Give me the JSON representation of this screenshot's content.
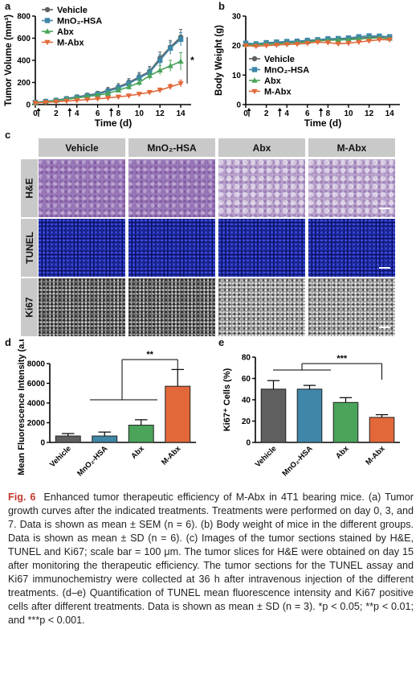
{
  "caption": {
    "fig_label": "Fig. 6",
    "text": "Enhanced tumor therapeutic efficiency of M-Abx in 4T1 bearing mice. (a) Tumor growth curves after the indicated treatments. Treatments were performed on day 0, 3, and 7. Data is shown as mean ± SEM (n = 6). (b) Body weight of mice in the different groups. Data is shown as mean ± SD (n = 6). (c) Images of the tumor sections stained by H&E, TUNEL and Ki67; scale bar = 100 μm. The tumor slices for H&E were obtained on day 15 after monitoring the therapeutic efficiency. The tumor sections for the TUNEL assay and Ki67 immunochemistry were collected at 36 h after intravenous injection of the different treatments. (d–e) Quantification of TUNEL mean fluorescence intensity and Ki67 positive cells after different treatments. Data is shown as mean ± SD (n = 3). *p < 0.05; **p < 0.01; and ***p < 0.001."
  },
  "panel_letters": {
    "a": "a",
    "b": "b",
    "c": "c",
    "d": "d",
    "e": "e"
  },
  "panel_c": {
    "columns": [
      "Vehicle",
      "MnO₂-HSA",
      "Abx",
      "M-Abx"
    ],
    "rows": [
      "H&E",
      "TUNEL",
      "Ki67"
    ]
  },
  "colors": {
    "vehicle": "#5f5f5f",
    "mno2": "#3f87a8",
    "abx": "#4aa45a",
    "mabx": "#e2683a"
  },
  "chart_data": [
    {
      "id": "a",
      "type": "line",
      "xlabel": "Time (d)",
      "ylabel": "Tumor Volume (mm³)",
      "xlim": [
        0,
        15
      ],
      "ylim": [
        0,
        800
      ],
      "xticks": [
        0,
        2,
        4,
        6,
        8,
        10,
        12,
        14
      ],
      "yticks": [
        0,
        200,
        400,
        600,
        800
      ],
      "treatment_days": [
        0,
        3,
        7
      ],
      "x": [
        0,
        1,
        2,
        3,
        4,
        5,
        6,
        7,
        8,
        9,
        10,
        11,
        12,
        13,
        14
      ],
      "series": [
        {
          "name": "Vehicle",
          "color": "#5f5f5f",
          "marker": "circle",
          "values": [
            20,
            30,
            40,
            55,
            70,
            85,
            100,
            130,
            160,
            200,
            250,
            300,
            420,
            520,
            610
          ],
          "err": [
            5,
            8,
            10,
            12,
            15,
            18,
            20,
            25,
            30,
            35,
            40,
            45,
            55,
            60,
            70
          ]
        },
        {
          "name": "MnO₂-HSA",
          "color": "#3f87a8",
          "marker": "square",
          "values": [
            20,
            28,
            38,
            52,
            66,
            80,
            95,
            120,
            150,
            190,
            240,
            290,
            400,
            510,
            590
          ],
          "err": [
            5,
            7,
            9,
            11,
            14,
            16,
            18,
            22,
            28,
            33,
            38,
            42,
            50,
            55,
            60
          ]
        },
        {
          "name": "Abx",
          "color": "#4aa45a",
          "marker": "triangle-up",
          "values": [
            18,
            25,
            35,
            48,
            60,
            72,
            85,
            100,
            130,
            160,
            200,
            260,
            310,
            350,
            390
          ],
          "err": [
            5,
            7,
            9,
            10,
            12,
            14,
            16,
            18,
            22,
            26,
            30,
            36,
            42,
            50,
            80
          ]
        },
        {
          "name": "M-Abx",
          "color": "#e2683a",
          "marker": "triangle-down",
          "values": [
            15,
            20,
            26,
            32,
            38,
            45,
            52,
            60,
            70,
            80,
            95,
            110,
            130,
            160,
            190
          ],
          "err": [
            4,
            5,
            6,
            7,
            8,
            9,
            10,
            11,
            12,
            14,
            16,
            18,
            20,
            24,
            30
          ]
        }
      ],
      "annotations": [
        "*"
      ],
      "legend": "top-left"
    },
    {
      "id": "b",
      "type": "line",
      "xlabel": "Time (d)",
      "ylabel": "Body Weight (g)",
      "xlim": [
        0,
        15
      ],
      "ylim": [
        0,
        30
      ],
      "xticks": [
        0,
        2,
        4,
        6,
        8,
        10,
        12,
        14
      ],
      "yticks": [
        0,
        10,
        20,
        30
      ],
      "treatment_days": [
        0,
        3,
        7
      ],
      "x": [
        0,
        1,
        2,
        3,
        4,
        5,
        6,
        7,
        8,
        9,
        10,
        11,
        12,
        13,
        14
      ],
      "series": [
        {
          "name": "Vehicle",
          "color": "#5f5f5f",
          "marker": "circle",
          "values": [
            20.5,
            20.5,
            20.8,
            21,
            21,
            21.2,
            21.5,
            21.8,
            22,
            22,
            22.2,
            22.5,
            22.8,
            22.8,
            22.5
          ]
        },
        {
          "name": "MnO₂-HSA",
          "color": "#3f87a8",
          "marker": "square",
          "values": [
            20.8,
            20.6,
            21,
            21.2,
            21.4,
            21.5,
            21.8,
            22,
            22.3,
            22.4,
            22.6,
            23,
            23.3,
            23.2,
            23
          ]
        },
        {
          "name": "Abx",
          "color": "#4aa45a",
          "marker": "triangle-up",
          "values": [
            20.3,
            20.2,
            20.5,
            20.6,
            20.8,
            21,
            21.2,
            21.6,
            21.8,
            21.9,
            22,
            22.2,
            22.5,
            22.6,
            22.4
          ]
        },
        {
          "name": "M-Abx",
          "color": "#e2683a",
          "marker": "triangle-down",
          "values": [
            20,
            19.8,
            20,
            20.2,
            20.4,
            20.5,
            20.8,
            21.2,
            21,
            20.6,
            20.8,
            21.2,
            21.6,
            22,
            22
          ]
        }
      ],
      "legend": "center-left"
    },
    {
      "id": "d",
      "type": "bar",
      "ylabel": "Mean Fluorescence Intensity (a.u.)",
      "ylim": [
        0,
        8000
      ],
      "yticks": [
        0,
        2000,
        4000,
        6000,
        8000
      ],
      "categories": [
        "Vehicle",
        "MnO₂-HSA",
        "Abx",
        "M-Abx"
      ],
      "values": [
        650,
        650,
        1750,
        5700
      ],
      "err": [
        250,
        400,
        550,
        1700
      ],
      "significance": "**"
    },
    {
      "id": "e",
      "type": "bar",
      "ylabel": "Ki67⁺ Cells (%)",
      "ylim": [
        0,
        80
      ],
      "yticks": [
        0,
        20,
        40,
        60,
        80
      ],
      "categories": [
        "Vehicle",
        "MnO₂-HSA",
        "Abx",
        "M-Abx"
      ],
      "values": [
        50,
        50,
        37.5,
        23.5
      ],
      "err": [
        8,
        3.5,
        4.5,
        2.5
      ],
      "significance": "***"
    }
  ]
}
